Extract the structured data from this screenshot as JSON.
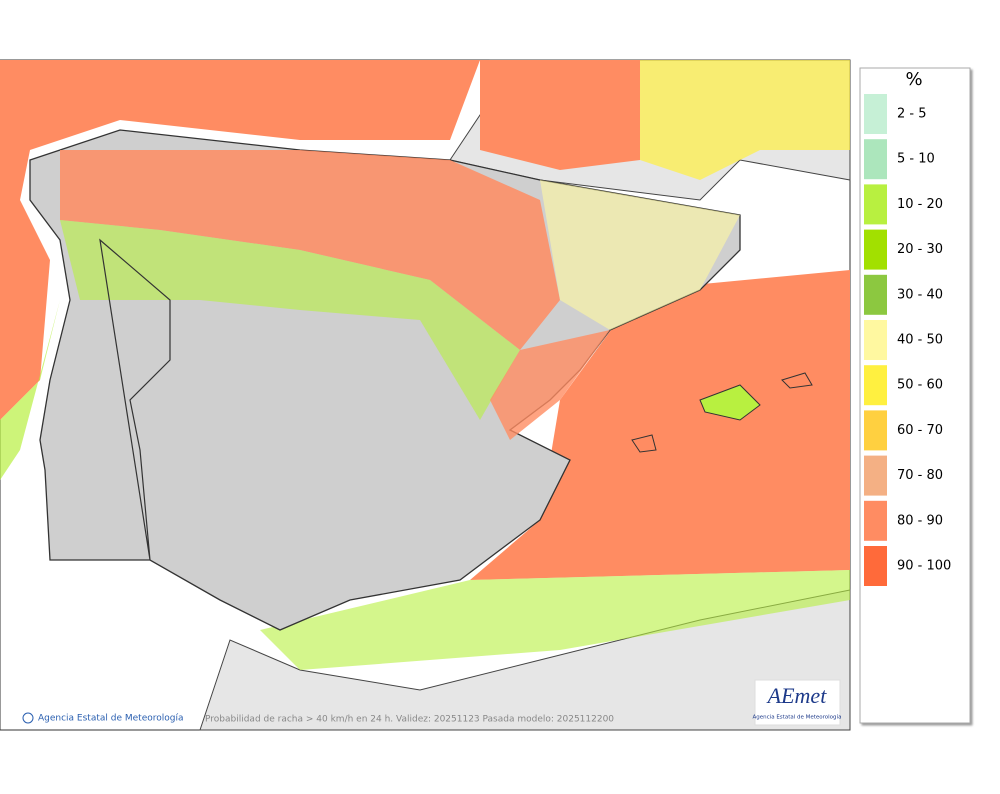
{
  "legend": {
    "title": "%",
    "items": [
      {
        "label": "2 - 5",
        "color": "#c6f0d6"
      },
      {
        "label": "5 - 10",
        "color": "#ace6bc"
      },
      {
        "label": "10 - 20",
        "color": "#b8f040"
      },
      {
        "label": "20 - 30",
        "color": "#a2e000"
      },
      {
        "label": "30 - 40",
        "color": "#8cc840"
      },
      {
        "label": "40 - 50",
        "color": "#fff8a0"
      },
      {
        "label": "50 - 60",
        "color": "#fff040"
      },
      {
        "label": "60 - 70",
        "color": "#ffd040"
      },
      {
        "label": "70 - 80",
        "color": "#f4b084"
      },
      {
        "label": "80 - 90",
        "color": "#ff8c62"
      },
      {
        "label": "90 - 100",
        "color": "#ff6a3a"
      }
    ]
  },
  "footer": {
    "credit": "Agencia Estatal de Meteorología",
    "caption": "Probabilidad de racha > 40 km/h en 24 h. Validez: 20251123 Pasada modelo: 2025112200"
  },
  "logo": {
    "name": "AEmet",
    "subtitle": "Agencia Estatal de Meteorología"
  }
}
